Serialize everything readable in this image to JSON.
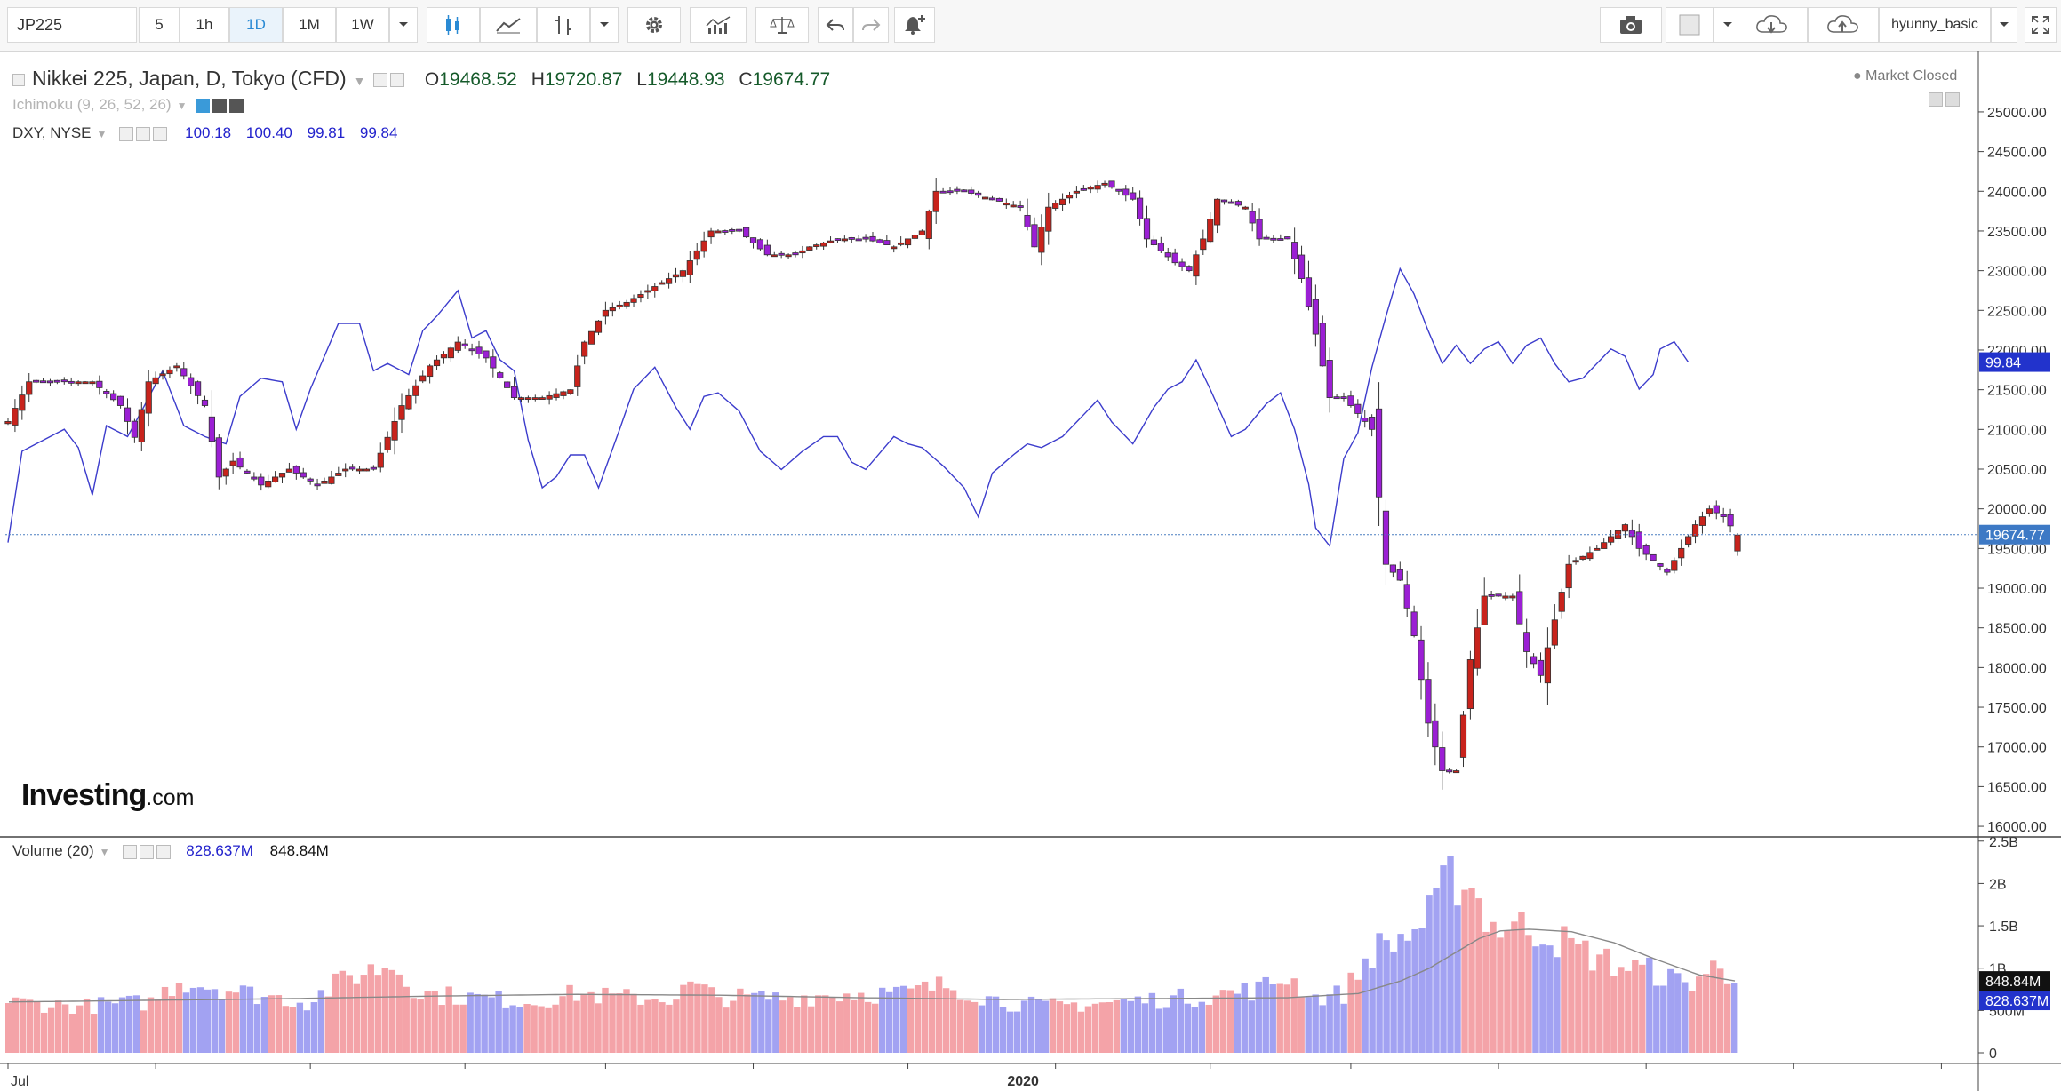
{
  "toolbar": {
    "symbol": "JP225",
    "intervals": [
      "5",
      "1h",
      "1D",
      "1M",
      "1W"
    ],
    "active_interval": "1D",
    "user": "hyunny_basic"
  },
  "legend": {
    "main_title": "Nikkei 225, Japan, D, Tokyo (CFD)",
    "ohlc": {
      "o_label": "O",
      "o": "19468.52",
      "h_label": "H",
      "h": "19720.87",
      "l_label": "L",
      "l": "19448.93",
      "c_label": "C",
      "c": "19674.77"
    },
    "ichimoku": "Ichimoku (9, 26, 52, 26)",
    "dxy_title": "DXY, NYSE",
    "dxy_values": [
      "100.18",
      "100.40",
      "99.81",
      "99.84"
    ],
    "market_status": "Market Closed",
    "volume_title": "Volume (20)",
    "volume_values": [
      "828.637M",
      "848.84M"
    ]
  },
  "brand": {
    "name": "Investing",
    "suffix": ".com"
  },
  "colors": {
    "up": "#c8231c",
    "down": "#9b1fd4",
    "dxy": "#3c3ccc",
    "vol_up": "#f4a3a8",
    "vol_down": "#a2a2f2",
    "vol_ma": "#888888",
    "price_line": "#4a7fc0"
  },
  "chart_data": [
    {
      "type": "candlestick",
      "title": "Nikkei 225, Japan, D, Tokyo (CFD)",
      "ylim": [
        15900,
        25100
      ],
      "y_ticks": [
        "25000.00",
        "24500.00",
        "24000.00",
        "23500.00",
        "23000.00",
        "22500.00",
        "22000.00",
        "21500.00",
        "21000.00",
        "20500.00",
        "20000.00",
        "19500.00",
        "19000.00",
        "18500.00",
        "18000.00",
        "17500.00",
        "17000.00",
        "16500.00",
        "16000.00"
      ],
      "x_ticks": [
        {
          "label": "Jul",
          "index": 0
        },
        {
          "label": "2020",
          "index": 144
        }
      ],
      "last_price": {
        "label": "19674.77",
        "value": 19674.77
      },
      "knots": [
        [
          0,
          21100
        ],
        [
          3,
          21600
        ],
        [
          12,
          21600
        ],
        [
          16,
          21300
        ],
        [
          18,
          20900
        ],
        [
          20,
          21600
        ],
        [
          24,
          21800
        ],
        [
          28,
          21300
        ],
        [
          30,
          20400
        ],
        [
          32,
          20600
        ],
        [
          36,
          20300
        ],
        [
          40,
          20500
        ],
        [
          44,
          20300
        ],
        [
          48,
          20500
        ],
        [
          52,
          20500
        ],
        [
          56,
          21300
        ],
        [
          60,
          21800
        ],
        [
          64,
          22100
        ],
        [
          68,
          21900
        ],
        [
          72,
          21400
        ],
        [
          76,
          21400
        ],
        [
          80,
          21500
        ],
        [
          82,
          22100
        ],
        [
          85,
          22500
        ],
        [
          88,
          22600
        ],
        [
          92,
          22800
        ],
        [
          96,
          23000
        ],
        [
          100,
          23500
        ],
        [
          104,
          23500
        ],
        [
          108,
          23200
        ],
        [
          112,
          23200
        ],
        [
          114,
          23300
        ],
        [
          118,
          23400
        ],
        [
          122,
          23400
        ],
        [
          126,
          23300
        ],
        [
          130,
          23500
        ],
        [
          132,
          24000
        ],
        [
          136,
          24000
        ],
        [
          140,
          23900
        ],
        [
          144,
          23800
        ],
        [
          146,
          23300
        ],
        [
          148,
          23800
        ],
        [
          152,
          24000
        ],
        [
          156,
          24100
        ],
        [
          160,
          23900
        ],
        [
          162,
          23400
        ],
        [
          166,
          23100
        ],
        [
          168,
          23000
        ],
        [
          170,
          23400
        ],
        [
          172,
          23900
        ],
        [
          176,
          23800
        ],
        [
          178,
          23400
        ],
        [
          182,
          23400
        ],
        [
          184,
          22900
        ],
        [
          186,
          22200
        ],
        [
          188,
          21400
        ],
        [
          190,
          21400
        ],
        [
          192,
          21200
        ],
        [
          194,
          21000
        ],
        [
          196,
          19300
        ],
        [
          198,
          19100
        ],
        [
          200,
          18400
        ],
        [
          202,
          17300
        ],
        [
          204,
          16700
        ],
        [
          206,
          16700
        ],
        [
          208,
          18100
        ],
        [
          210,
          18900
        ],
        [
          214,
          18900
        ],
        [
          216,
          18200
        ],
        [
          218,
          17900
        ],
        [
          220,
          18600
        ],
        [
          222,
          19300
        ],
        [
          226,
          19500
        ],
        [
          230,
          19800
        ],
        [
          232,
          19500
        ],
        [
          236,
          19200
        ],
        [
          240,
          19800
        ],
        [
          242,
          20000
        ],
        [
          244,
          19900
        ],
        [
          246,
          19670
        ]
      ]
    },
    {
      "type": "line",
      "series": [
        {
          "name": "DXY, NYSE",
          "last_label": "99.84"
        }
      ],
      "ylim": [
        86.91,
        106.91
      ],
      "knots": [
        [
          0,
          94.9
        ],
        [
          2,
          97.4
        ],
        [
          5,
          97.7
        ],
        [
          8,
          98.0
        ],
        [
          10,
          97.5
        ],
        [
          12,
          96.2
        ],
        [
          14,
          98.1
        ],
        [
          17,
          97.8
        ],
        [
          19,
          98.5
        ],
        [
          22,
          99.6
        ],
        [
          25,
          98.1
        ],
        [
          28,
          97.8
        ],
        [
          31,
          97.6
        ],
        [
          33,
          98.9
        ],
        [
          36,
          99.4
        ],
        [
          39,
          99.3
        ],
        [
          41,
          98.0
        ],
        [
          43,
          99.1
        ],
        [
          45,
          100.0
        ],
        [
          47,
          100.9
        ],
        [
          50,
          100.9
        ],
        [
          52,
          99.6
        ],
        [
          54,
          99.8
        ],
        [
          57,
          99.5
        ],
        [
          59,
          100.7
        ],
        [
          61,
          101.1
        ],
        [
          64,
          101.8
        ],
        [
          66,
          100.5
        ],
        [
          68,
          100.7
        ],
        [
          70,
          99.9
        ],
        [
          72,
          99.6
        ],
        [
          74,
          97.7
        ],
        [
          76,
          96.4
        ],
        [
          78,
          96.7
        ],
        [
          80,
          97.3
        ],
        [
          82,
          97.3
        ],
        [
          84,
          96.4
        ],
        [
          87,
          98.0
        ],
        [
          89,
          99.1
        ],
        [
          92,
          99.7
        ],
        [
          95,
          98.6
        ],
        [
          97,
          98.0
        ],
        [
          99,
          98.9
        ],
        [
          101,
          99.0
        ],
        [
          104,
          98.5
        ],
        [
          107,
          97.4
        ],
        [
          110,
          96.9
        ],
        [
          113,
          97.4
        ],
        [
          116,
          97.8
        ],
        [
          118,
          97.8
        ],
        [
          120,
          97.1
        ],
        [
          122,
          96.9
        ],
        [
          126,
          97.8
        ],
        [
          128,
          97.6
        ],
        [
          130,
          97.5
        ],
        [
          133,
          97.0
        ],
        [
          136,
          96.4
        ],
        [
          138,
          95.6
        ],
        [
          140,
          96.8
        ],
        [
          143,
          97.3
        ],
        [
          145,
          97.6
        ],
        [
          147,
          97.5
        ],
        [
          150,
          97.8
        ],
        [
          153,
          98.4
        ],
        [
          155,
          98.8
        ],
        [
          157,
          98.2
        ],
        [
          160,
          97.6
        ],
        [
          163,
          98.6
        ],
        [
          165,
          99.1
        ],
        [
          167,
          99.3
        ],
        [
          169,
          99.9
        ],
        [
          171,
          99.1
        ],
        [
          174,
          97.8
        ],
        [
          176,
          98.0
        ],
        [
          179,
          98.7
        ],
        [
          181,
          99.0
        ],
        [
          183,
          98.0
        ],
        [
          185,
          96.5
        ],
        [
          186,
          95.3
        ],
        [
          188,
          94.8
        ],
        [
          190,
          97.2
        ],
        [
          192,
          97.9
        ],
        [
          194,
          99.7
        ],
        [
          196,
          101.1
        ],
        [
          198,
          102.4
        ],
        [
          200,
          101.7
        ],
        [
          202,
          100.7
        ],
        [
          204,
          99.8
        ],
        [
          206,
          100.3
        ],
        [
          208,
          99.8
        ],
        [
          210,
          100.2
        ],
        [
          212,
          100.4
        ],
        [
          214,
          99.8
        ],
        [
          216,
          100.3
        ],
        [
          218,
          100.5
        ],
        [
          220,
          99.8
        ],
        [
          222,
          99.3
        ],
        [
          224,
          99.4
        ],
        [
          226,
          99.8
        ],
        [
          228,
          100.2
        ],
        [
          230,
          100.0
        ],
        [
          232,
          99.1
        ],
        [
          234,
          99.5
        ],
        [
          235,
          100.2
        ],
        [
          237,
          100.4
        ],
        [
          239,
          99.84
        ]
      ]
    },
    {
      "type": "bar",
      "series": [
        {
          "name": "Volume (20)",
          "last_labels": [
            "848.84M",
            "828.637M"
          ]
        }
      ],
      "ylim": [
        0,
        2550000000
      ],
      "y_ticks": [
        "2.5B",
        "2B",
        "1.5B",
        "1B",
        "500M",
        "0"
      ],
      "knots": [
        [
          0,
          600
        ],
        [
          10,
          550
        ],
        [
          20,
          600
        ],
        [
          24,
          850
        ],
        [
          28,
          800
        ],
        [
          34,
          700
        ],
        [
          42,
          600
        ],
        [
          48,
          900
        ],
        [
          52,
          1000
        ],
        [
          54,
          1050
        ],
        [
          58,
          700
        ],
        [
          66,
          650
        ],
        [
          74,
          600
        ],
        [
          80,
          700
        ],
        [
          86,
          650
        ],
        [
          94,
          650
        ],
        [
          96,
          800
        ],
        [
          100,
          650
        ],
        [
          110,
          650
        ],
        [
          118,
          700
        ],
        [
          126,
          700
        ],
        [
          132,
          800
        ],
        [
          140,
          600
        ],
        [
          146,
          550
        ],
        [
          156,
          600
        ],
        [
          166,
          650
        ],
        [
          176,
          750
        ],
        [
          180,
          900
        ],
        [
          184,
          650
        ],
        [
          188,
          700
        ],
        [
          192,
          1200
        ],
        [
          196,
          1350
        ],
        [
          198,
          1450
        ],
        [
          200,
          1600
        ],
        [
          203,
          2050
        ],
        [
          205,
          2100
        ],
        [
          207,
          1800
        ],
        [
          209,
          1500
        ],
        [
          211,
          1500
        ],
        [
          216,
          1450
        ],
        [
          220,
          1250
        ],
        [
          226,
          1050
        ],
        [
          232,
          950
        ],
        [
          236,
          800
        ],
        [
          240,
          1000
        ],
        [
          243,
          828
        ]
      ],
      "ma_knots": [
        [
          0,
          600
        ],
        [
          20,
          620
        ],
        [
          40,
          640
        ],
        [
          60,
          670
        ],
        [
          80,
          690
        ],
        [
          100,
          680
        ],
        [
          120,
          650
        ],
        [
          140,
          630
        ],
        [
          160,
          640
        ],
        [
          180,
          650
        ],
        [
          190,
          700
        ],
        [
          196,
          850
        ],
        [
          200,
          1000
        ],
        [
          204,
          1200
        ],
        [
          207,
          1350
        ],
        [
          210,
          1440
        ],
        [
          214,
          1460
        ],
        [
          220,
          1430
        ],
        [
          226,
          1300
        ],
        [
          232,
          1100
        ],
        [
          238,
          920
        ],
        [
          243,
          849
        ]
      ]
    }
  ]
}
